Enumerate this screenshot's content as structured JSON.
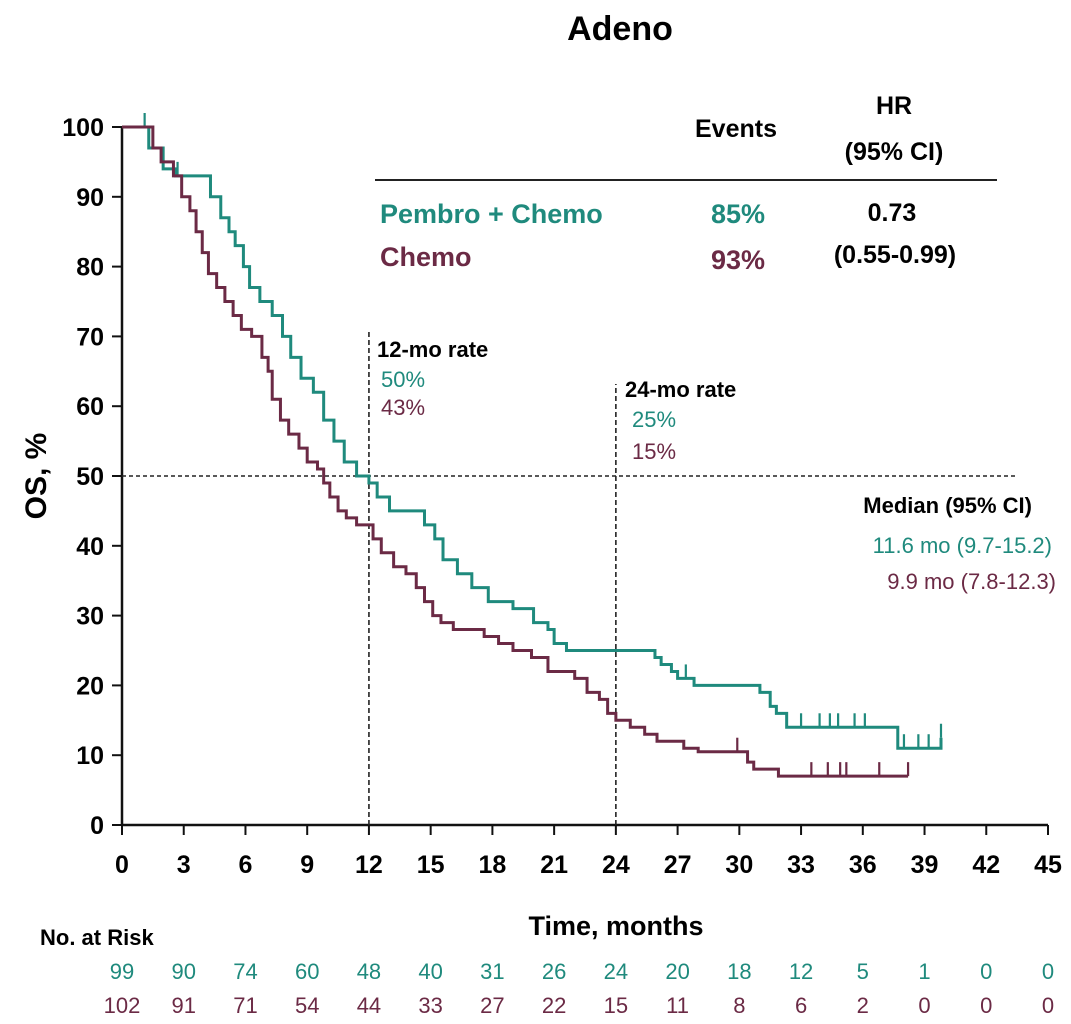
{
  "chart_data": {
    "type": "line",
    "title": "Adeno",
    "xlabel": "Time, months",
    "ylabel": "OS, %",
    "xlim": [
      0,
      45
    ],
    "ylim": [
      0,
      100
    ],
    "x_ticks": [
      0,
      3,
      6,
      9,
      12,
      15,
      18,
      21,
      24,
      27,
      30,
      33,
      36,
      39,
      42,
      45
    ],
    "y_ticks": [
      0,
      10,
      20,
      30,
      40,
      50,
      60,
      70,
      80,
      90,
      100
    ],
    "colors": {
      "pembro": "#1f8a7d",
      "chemo": "#6b2a45"
    },
    "series": [
      {
        "name": "Pembro + Chemo",
        "key": "pembro",
        "steps": [
          [
            0,
            100
          ],
          [
            1,
            100
          ],
          [
            1.3,
            97
          ],
          [
            2,
            94
          ],
          [
            2.6,
            93
          ],
          [
            4,
            93
          ],
          [
            4.3,
            90
          ],
          [
            4.8,
            87
          ],
          [
            5.2,
            85
          ],
          [
            5.5,
            83
          ],
          [
            5.9,
            80
          ],
          [
            6.2,
            77
          ],
          [
            6.7,
            75
          ],
          [
            7.3,
            73
          ],
          [
            7.8,
            70
          ],
          [
            8.2,
            67
          ],
          [
            8.7,
            64
          ],
          [
            9.3,
            62
          ],
          [
            9.8,
            58
          ],
          [
            10.3,
            55
          ],
          [
            10.8,
            52
          ],
          [
            11.4,
            50
          ],
          [
            12,
            49
          ],
          [
            12.4,
            47
          ],
          [
            13,
            45
          ],
          [
            14.7,
            43
          ],
          [
            15.2,
            41
          ],
          [
            15.6,
            38
          ],
          [
            16.3,
            36
          ],
          [
            17,
            34
          ],
          [
            17.8,
            32
          ],
          [
            19,
            31
          ],
          [
            20,
            29
          ],
          [
            20.7,
            28
          ],
          [
            21,
            26
          ],
          [
            21.6,
            25
          ],
          [
            25.9,
            24
          ],
          [
            26.2,
            23
          ],
          [
            26.7,
            22
          ],
          [
            27,
            21
          ],
          [
            27.8,
            20
          ],
          [
            31,
            19
          ],
          [
            31.5,
            17
          ],
          [
            31.8,
            16
          ],
          [
            32.3,
            14
          ],
          [
            37.7,
            11
          ],
          [
            39.8,
            12.5
          ]
        ],
        "censor_x": [
          1.1,
          2.7,
          27.4,
          33,
          33.9,
          34.4,
          34.8,
          35.6,
          36.1,
          38,
          38.7,
          39.2,
          39.8
        ]
      },
      {
        "name": "Chemo",
        "key": "chemo",
        "steps": [
          [
            0,
            100
          ],
          [
            1.5,
            97
          ],
          [
            1.9,
            95
          ],
          [
            2.5,
            93
          ],
          [
            2.9,
            90
          ],
          [
            3.3,
            88
          ],
          [
            3.6,
            85
          ],
          [
            3.9,
            82
          ],
          [
            4.2,
            79
          ],
          [
            4.6,
            77
          ],
          [
            5,
            75
          ],
          [
            5.4,
            73
          ],
          [
            5.8,
            71
          ],
          [
            6.3,
            70
          ],
          [
            6.8,
            67
          ],
          [
            7.1,
            65
          ],
          [
            7.3,
            61
          ],
          [
            7.7,
            58
          ],
          [
            8.1,
            56
          ],
          [
            8.6,
            54
          ],
          [
            9,
            52
          ],
          [
            9.5,
            51
          ],
          [
            9.8,
            49
          ],
          [
            10.1,
            47
          ],
          [
            10.5,
            45
          ],
          [
            10.9,
            44
          ],
          [
            11.4,
            43
          ],
          [
            12.2,
            41
          ],
          [
            12.6,
            39
          ],
          [
            13.2,
            37
          ],
          [
            13.8,
            36
          ],
          [
            14.3,
            34
          ],
          [
            14.7,
            32
          ],
          [
            15.1,
            30
          ],
          [
            15.5,
            29
          ],
          [
            16.1,
            28
          ],
          [
            17.6,
            27
          ],
          [
            18.3,
            26
          ],
          [
            19,
            25
          ],
          [
            19.9,
            24
          ],
          [
            20.7,
            22
          ],
          [
            22,
            21
          ],
          [
            22.6,
            19
          ],
          [
            23.2,
            18
          ],
          [
            23.6,
            16
          ],
          [
            24,
            15
          ],
          [
            24.7,
            14
          ],
          [
            25.4,
            13
          ],
          [
            26,
            12
          ],
          [
            27.3,
            11
          ],
          [
            28,
            10.5
          ],
          [
            30.4,
            9
          ],
          [
            30.7,
            8
          ],
          [
            31.9,
            7
          ],
          [
            38.2,
            7
          ]
        ],
        "censor_x": [
          29.9,
          33.5,
          34.3,
          34.9,
          35.2,
          36.8,
          38.2
        ]
      }
    ],
    "legend": {
      "events_header": "Events",
      "hr_header_line1": "HR",
      "hr_header_line2": "(95%  CI)",
      "pembro_label": "Pembro + Chemo",
      "pembro_events": "85%",
      "chemo_label": "Chemo",
      "chemo_events": "93%",
      "hr_value": "0.73",
      "hr_ci": "(0.55-0.99)"
    },
    "annotations": {
      "rate12_label": "12-mo rate",
      "rate12_pembro": "50%",
      "rate12_chemo": "43%",
      "rate24_label": "24-mo rate",
      "rate24_pembro": "25%",
      "rate24_chemo": "15%",
      "median_label": "Median (95% CI)",
      "median_pembro": "11.6 mo (9.7-15.2)",
      "median_chemo": "9.9 mo (7.8-12.3)"
    },
    "risk_table": {
      "label": "No. at Risk",
      "pembro": [
        "99",
        "90",
        "74",
        "60",
        "48",
        "40",
        "31",
        "26",
        "24",
        "20",
        "18",
        "12",
        "5",
        "1",
        "0",
        "0"
      ],
      "chemo": [
        "102",
        "91",
        "71",
        "54",
        "44",
        "33",
        "27",
        "22",
        "15",
        "11",
        "8",
        "6",
        "2",
        "0",
        "0",
        "0"
      ]
    }
  }
}
